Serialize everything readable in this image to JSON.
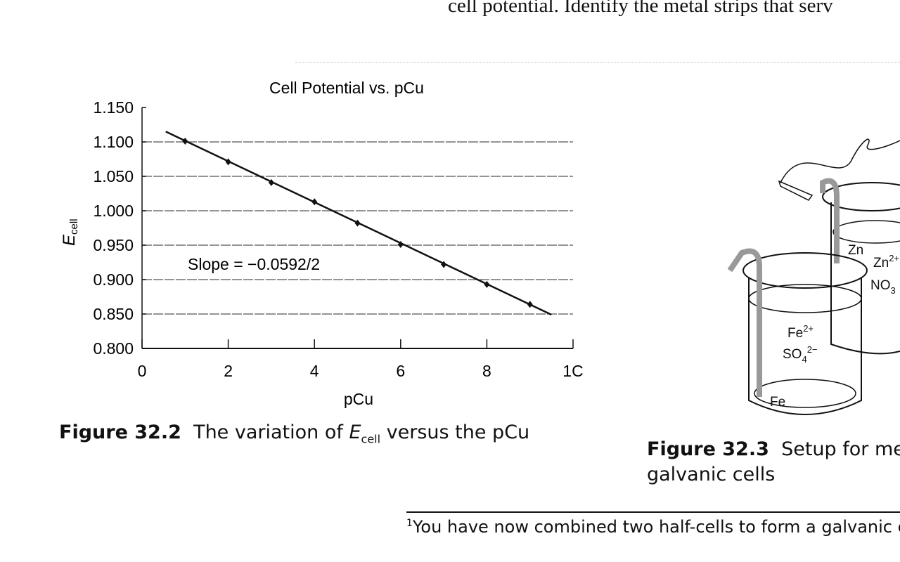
{
  "page": {
    "top_text": "cell potential. Identify the metal strips that serv",
    "figure_32_2": {
      "label": "Figure 32.2",
      "text_before": "The variation of ",
      "e": "E",
      "sub": "cell",
      "text_after": " versus the pCu"
    },
    "figure_32_3": {
      "label": "Figure 32.3",
      "line1": "Setup for me",
      "line2": "galvanic cells"
    },
    "footnote": {
      "mark": "1",
      "text": "You have now combined two half-cells to form a galvanic c"
    },
    "diagram_labels": {
      "zn": "Zn",
      "zn_ion": "Zn",
      "zn_charge": "2+",
      "no3": "NO",
      "no3_sub": "3",
      "fe_ion": "Fe",
      "fe_charge": "2+",
      "so4": "SO",
      "so4_sub": "4",
      "so4_charge": "2−",
      "fe": "Fe"
    }
  },
  "chart_data": {
    "type": "line",
    "title": "Cell Potential vs. pCu",
    "xlabel": "pCu",
    "ylabel": "E",
    "ylabel_sub": "cell",
    "xlim": [
      0,
      10
    ],
    "ylim": [
      0.8,
      1.15
    ],
    "xticks": [
      "0",
      "2",
      "4",
      "6",
      "8",
      "1C"
    ],
    "xtick_values": [
      0,
      2,
      4,
      6,
      8,
      10
    ],
    "yticks": [
      "1.150",
      "1.100",
      "1.050",
      "1.000",
      "0.950",
      "0.900",
      "0.850",
      "0.800"
    ],
    "ytick_values": [
      1.15,
      1.1,
      1.05,
      1.0,
      0.95,
      0.9,
      0.85,
      0.8
    ],
    "grid": "horizontal",
    "points": {
      "x": [
        1,
        2,
        3,
        4,
        5,
        6,
        7,
        8,
        9
      ],
      "y": [
        1.101,
        1.071,
        1.041,
        1.013,
        0.982,
        0.951,
        0.922,
        0.893,
        0.864
      ]
    },
    "fit_line": {
      "x": [
        0.55,
        9.5
      ],
      "y": [
        1.115,
        0.849
      ]
    },
    "annotation": "Slope = −0.0592/2"
  }
}
